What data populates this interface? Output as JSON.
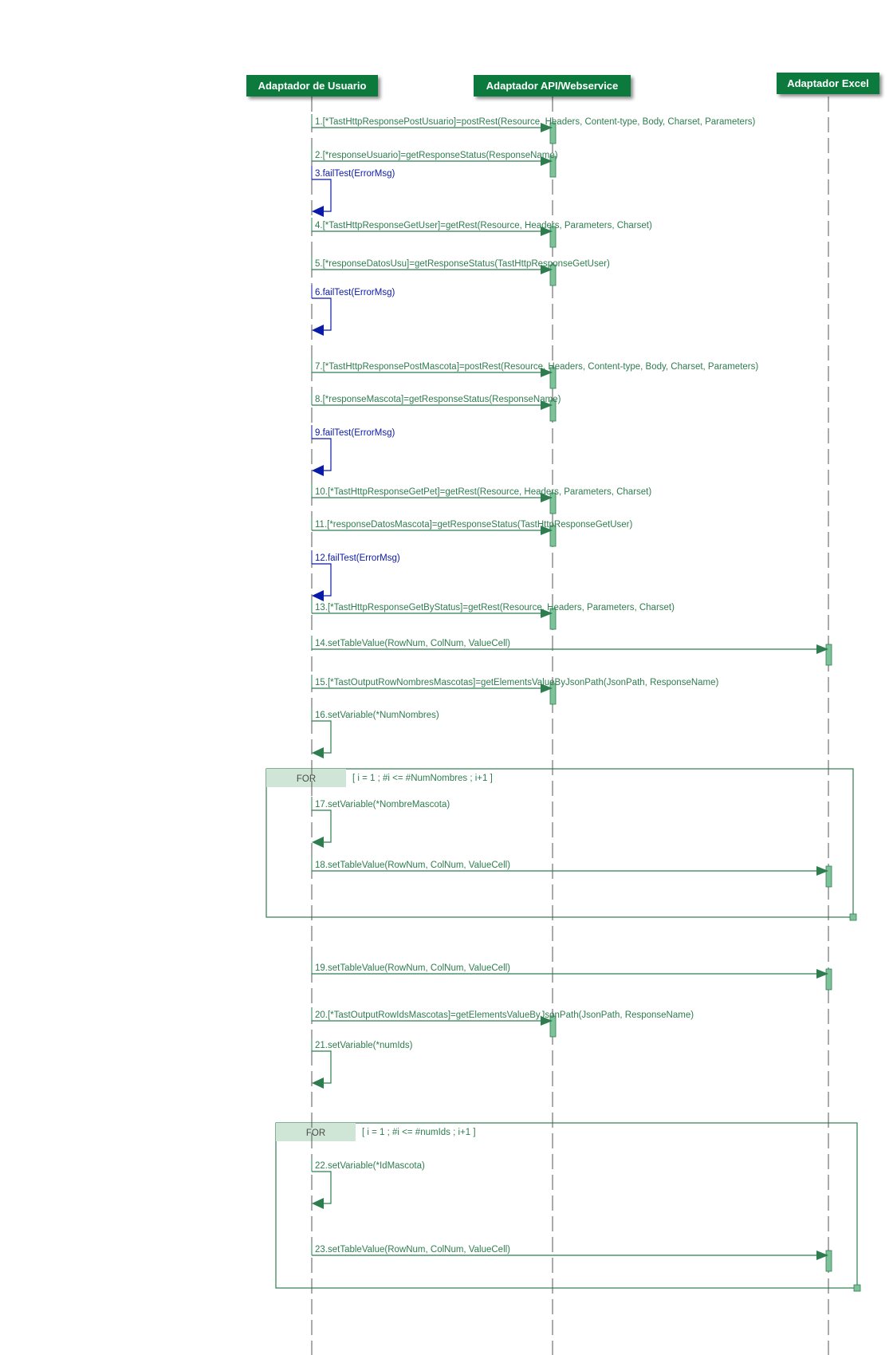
{
  "colors": {
    "green": "#2e7d4f",
    "dark_green": "#0c7a3e",
    "blue": "#0a1aa8",
    "activation": "#7ec29a",
    "frame_header": "#cfe6d7",
    "lifeline": "#555555"
  },
  "lifelines": [
    {
      "id": "user",
      "label": "Adaptador de Usuario"
    },
    {
      "id": "api",
      "label": "Adaptador API/Webservice"
    },
    {
      "id": "excel",
      "label": "Adaptador Excel"
    }
  ],
  "messages": [
    {
      "text": "1.[*TastHttpResponsePostUsuario]=postRest(Resource, Headers, Content-type, Body, Charset, Parameters)",
      "from": "user",
      "to": "api",
      "kind": "call"
    },
    {
      "text": "2.[*responseUsuario]=getResponseStatus(ResponseName)",
      "from": "user",
      "to": "api",
      "kind": "call"
    },
    {
      "text": "3.failTest(ErrorMsg)",
      "from": "user",
      "to": "user",
      "kind": "fail"
    },
    {
      "text": "4.[*TastHttpResponseGetUser]=getRest(Resource, Headers, Parameters, Charset)",
      "from": "user",
      "to": "api",
      "kind": "call"
    },
    {
      "text": "5.[*responseDatosUsu]=getResponseStatus(TastHttpResponseGetUser)",
      "from": "user",
      "to": "api",
      "kind": "call"
    },
    {
      "text": "6.failTest(ErrorMsg)",
      "from": "user",
      "to": "user",
      "kind": "fail"
    },
    {
      "text": "7.[*TastHttpResponsePostMascota]=postRest(Resource, Headers, Content-type, Body, Charset, Parameters)",
      "from": "user",
      "to": "api",
      "kind": "call"
    },
    {
      "text": "8.[*responseMascota]=getResponseStatus(ResponseName)",
      "from": "user",
      "to": "api",
      "kind": "call"
    },
    {
      "text": "9.failTest(ErrorMsg)",
      "from": "user",
      "to": "user",
      "kind": "fail"
    },
    {
      "text": "10.[*TastHttpResponseGetPet]=getRest(Resource, Headers, Parameters, Charset)",
      "from": "user",
      "to": "api",
      "kind": "call"
    },
    {
      "text": "11.[*responseDatosMascota]=getResponseStatus(TastHttpResponseGetUser)",
      "from": "user",
      "to": "api",
      "kind": "call"
    },
    {
      "text": "12.failTest(ErrorMsg)",
      "from": "user",
      "to": "user",
      "kind": "fail"
    },
    {
      "text": "13.[*TastHttpResponseGetByStatus]=getRest(Resource, Headers, Parameters, Charset)",
      "from": "user",
      "to": "api",
      "kind": "call"
    },
    {
      "text": "14.setTableValue(RowNum, ColNum, ValueCell)",
      "from": "user",
      "to": "excel",
      "kind": "call"
    },
    {
      "text": "15.[*TastOutputRowNombresMascotas]=getElementsValueByJsonPath(JsonPath, ResponseName)",
      "from": "user",
      "to": "api",
      "kind": "call"
    },
    {
      "text": "16.setVariable(*NumNombres)",
      "from": "user",
      "to": "user",
      "kind": "self"
    },
    {
      "text": "17.setVariable(*NombreMascota)",
      "from": "user",
      "to": "user",
      "kind": "self"
    },
    {
      "text": "18.setTableValue(RowNum, ColNum, ValueCell)",
      "from": "user",
      "to": "excel",
      "kind": "call"
    },
    {
      "text": "19.setTableValue(RowNum, ColNum, ValueCell)",
      "from": "user",
      "to": "excel",
      "kind": "call"
    },
    {
      "text": "20.[*TastOutputRowIdsMascotas]=getElementsValueByJsonPath(JsonPath, ResponseName)",
      "from": "user",
      "to": "api",
      "kind": "call"
    },
    {
      "text": "21.setVariable(*numIds)",
      "from": "user",
      "to": "user",
      "kind": "self"
    },
    {
      "text": "22.setVariable(*IdMascota)",
      "from": "user",
      "to": "user",
      "kind": "self"
    },
    {
      "text": "23.setTableValue(RowNum, ColNum, ValueCell)",
      "from": "user",
      "to": "excel",
      "kind": "call"
    }
  ],
  "frames": [
    {
      "label": "FOR",
      "condition": "[ i = 1 ; #i <= #NumNombres ; i+1 ]"
    },
    {
      "label": "FOR",
      "condition": "[ i = 1 ; #i <= #numIds ; i+1 ]"
    }
  ]
}
